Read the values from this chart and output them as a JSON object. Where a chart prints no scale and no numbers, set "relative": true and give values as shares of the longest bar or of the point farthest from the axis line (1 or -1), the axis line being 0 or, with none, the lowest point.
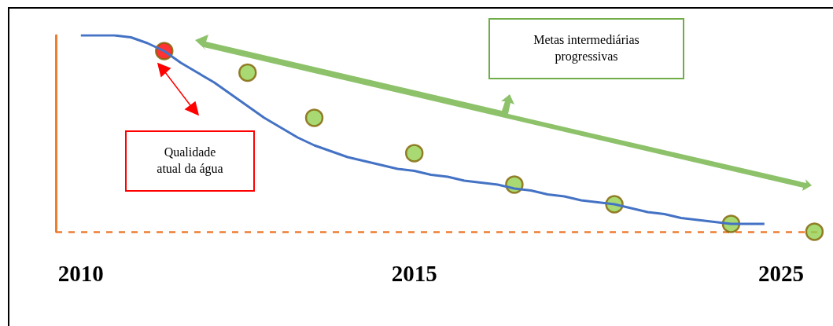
{
  "chart_data": {
    "type": "line",
    "relative": true,
    "categories": [
      null,
      "2010",
      null,
      null,
      null,
      null,
      null,
      null,
      null,
      null,
      null,
      null,
      null,
      null,
      null,
      null,
      null,
      null,
      null,
      null,
      null,
      "2015",
      null,
      null,
      null,
      null,
      null,
      null,
      null,
      null,
      null,
      null,
      null,
      null,
      null,
      null,
      null,
      null,
      null,
      null,
      null,
      null,
      null,
      "2025",
      null,
      null
    ],
    "series": [
      {
        "color": "#4472c4",
        "values": [
          null,
          1.0,
          1.0,
          1.0,
          0.99,
          0.96,
          0.92,
          0.86,
          0.81,
          0.76,
          0.7,
          0.64,
          0.58,
          0.53,
          0.48,
          0.44,
          0.41,
          0.38,
          0.36,
          0.34,
          0.32,
          0.31,
          0.29,
          0.28,
          0.26,
          0.25,
          0.24,
          0.22,
          0.21,
          0.19,
          0.18,
          0.16,
          0.15,
          0.14,
          0.12,
          0.1,
          0.09,
          0.07,
          0.06,
          0.05,
          0.04,
          0.04,
          0.04,
          null,
          null,
          null
        ]
      },
      {
        "type": "scatter",
        "marker": "circle",
        "color": "#92d050",
        "colors": [
          null,
          null,
          null,
          null,
          null,
          null,
          "#ff0000",
          null,
          null,
          null,
          null,
          "#92d050",
          null,
          null,
          null,
          "#92d050",
          null,
          null,
          null,
          null,
          null,
          "#92d050",
          null,
          null,
          null,
          null,
          null,
          "#92d050",
          null,
          null,
          null,
          null,
          null,
          "#92d050",
          null,
          null,
          null,
          null,
          null,
          null,
          "#92d050",
          null,
          null,
          null,
          null,
          "#92d050"
        ],
        "values": [
          null,
          null,
          null,
          null,
          null,
          null,
          0.92,
          null,
          null,
          null,
          null,
          0.81,
          null,
          null,
          null,
          0.58,
          null,
          null,
          null,
          null,
          null,
          0.4,
          null,
          null,
          null,
          null,
          null,
          0.24,
          null,
          null,
          null,
          null,
          null,
          0.14,
          null,
          null,
          null,
          null,
          null,
          null,
          0.04,
          null,
          null,
          null,
          null,
          0
        ]
      }
    ],
    "grid": false,
    "ref_lines": [
      {
        "axis": "y",
        "value": 0,
        "color": "#ed7d31",
        "line_style": "dashed"
      }
    ],
    "annotations": [
      "Qualidade atual da água",
      "Metas intermediárias progressivas"
    ]
  }
}
